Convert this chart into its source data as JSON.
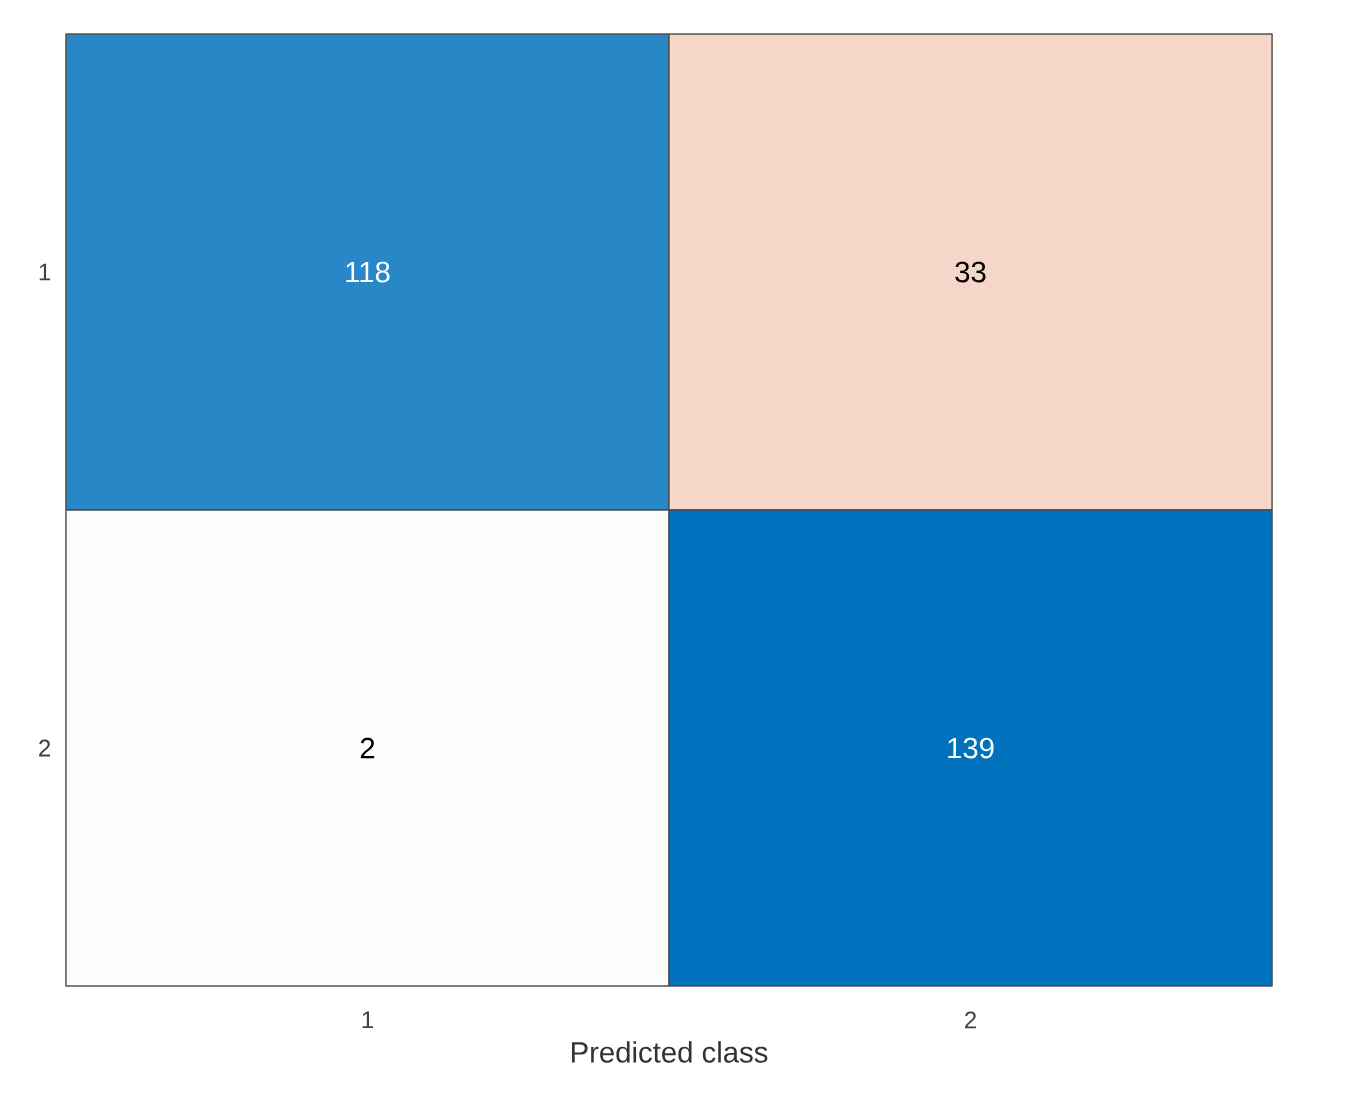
{
  "chart_data": {
    "type": "heatmap",
    "xlabel": "Predicted class",
    "categories": [
      "1",
      "2"
    ],
    "y_categories": [
      "1",
      "2"
    ],
    "data_labels": true,
    "cells": [
      [
        118,
        33
      ],
      [
        2,
        139
      ]
    ]
  }
}
